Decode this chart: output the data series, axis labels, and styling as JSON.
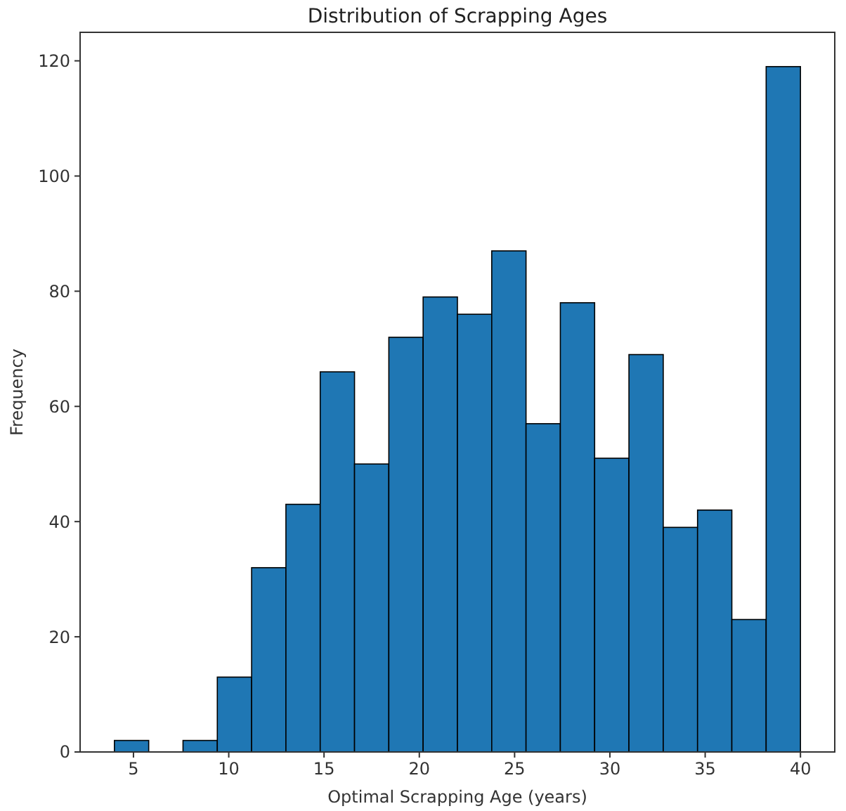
{
  "chart_data": {
    "type": "histogram",
    "title": "Distribution of Scrapping Ages",
    "xlabel": "Optimal Scrapping Age (years)",
    "ylabel": "Frequency",
    "bins": [
      4,
      5.8,
      7.6,
      9.4,
      11.2,
      13,
      14.8,
      16.6,
      18.4,
      20.2,
      22,
      23.8,
      25.6,
      27.4,
      29.2,
      31,
      32.8,
      34.6,
      36.4,
      38.2,
      40
    ],
    "values": [
      2,
      0,
      2,
      13,
      32,
      43,
      66,
      50,
      72,
      79,
      76,
      87,
      57,
      78,
      51,
      69,
      39,
      42,
      23,
      119
    ],
    "color": "#1f77b4",
    "xlim": [
      2.2,
      41.8
    ],
    "xticks": [
      5,
      10,
      15,
      20,
      25,
      30,
      35,
      40
    ],
    "ylim": [
      0,
      124.95
    ],
    "yticks": [
      0,
      20,
      40,
      60,
      80,
      100,
      120
    ]
  }
}
